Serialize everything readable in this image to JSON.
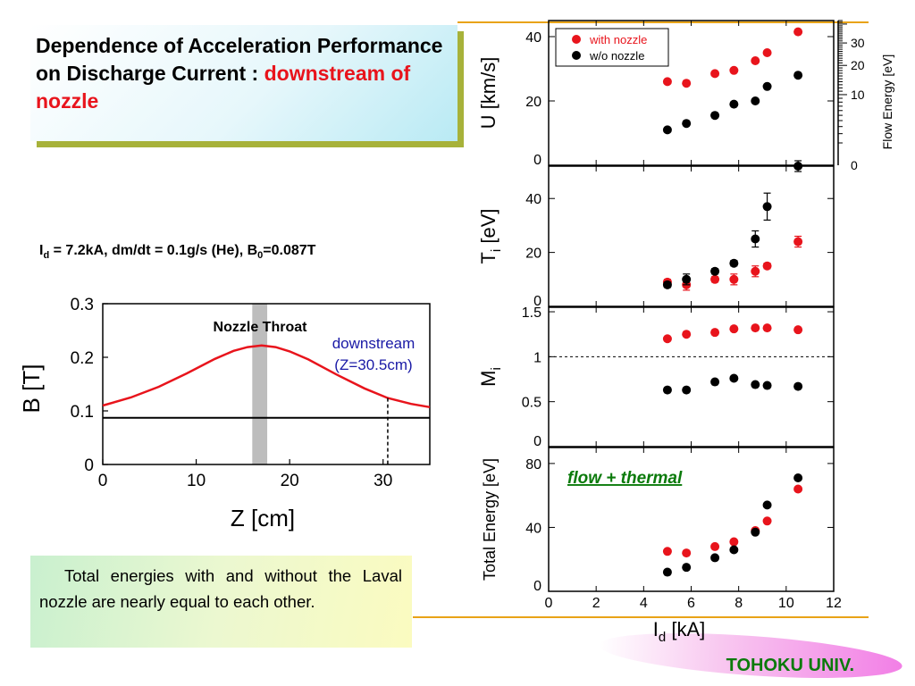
{
  "title": {
    "main": "Dependence of Acceleration Performance on Discharge Current : ",
    "highlight": "downstream of nozzle"
  },
  "conditions": {
    "i_sym": "I",
    "i_sub": "d",
    "part1": " = 7.2kA, dm/dt = 0.1g/s (He), B",
    "b_sub": "0",
    "part2": "=0.087T"
  },
  "note": "Total energies with and without the Laval nozzle are nearly equal to each other.",
  "footer": "TOHOKU UNIV.",
  "colors": {
    "nozzle": "#e8141c",
    "no_nozzle": "#000000",
    "accent_line": "#e8a317",
    "field": "#e8141c",
    "throat": "#bdbdbd",
    "downstream_text": "#1a1aa6",
    "annotation_green": "#0b7a0b"
  },
  "chart_data": [
    {
      "type": "line",
      "ylabel": "B [T]",
      "xlabel": "Z [cm]",
      "xlim": [
        0,
        35
      ],
      "ylim": [
        0,
        0.3
      ],
      "xticks": [
        0,
        10,
        20,
        30
      ],
      "yticks": [
        0,
        0.1,
        0.2,
        0.3
      ],
      "series": [
        {
          "x": [
            0,
            3,
            6,
            9,
            12,
            14,
            15.5,
            17,
            18.5,
            20,
            22,
            25,
            28,
            30.5,
            33,
            35
          ],
          "values": [
            0.11,
            0.125,
            0.145,
            0.17,
            0.197,
            0.212,
            0.219,
            0.222,
            0.219,
            0.211,
            0.196,
            0.168,
            0.142,
            0.124,
            0.113,
            0.107
          ]
        },
        {
          "x": [
            0,
            35
          ],
          "values": [
            0.087,
            0.087
          ]
        }
      ],
      "annotations": {
        "throat": {
          "label": "Nozzle Throat",
          "x": [
            16,
            17.6
          ]
        },
        "downstream": {
          "line1": "downstream",
          "line2": "(Z=30.5cm)",
          "x": 30.5
        }
      }
    },
    {
      "type": "scatter",
      "xlabel": "I",
      "xlabel_sub": "d",
      "xlabel_unit": " [kA]",
      "xlim": [
        0,
        12
      ],
      "xticks": [
        0,
        2,
        4,
        6,
        8,
        10,
        12
      ],
      "legend": {
        "position": "top-left",
        "entries": [
          "with nozzle",
          "w/o nozzle"
        ]
      },
      "panels": [
        {
          "ylabel": "U [km/s]",
          "ylim": [
            0,
            45
          ],
          "yticks": [
            0,
            20,
            40
          ],
          "secondary_axis": {
            "label": "Flow Energy [eV]",
            "ticks": [
              0,
              10,
              20,
              30
            ]
          },
          "series": [
            {
              "name": "with nozzle",
              "x": [
                5.0,
                5.8,
                7.0,
                7.8,
                8.7,
                9.2,
                10.5
              ],
              "values": [
                26,
                25.5,
                28.5,
                29.5,
                32.5,
                35,
                41.5
              ]
            },
            {
              "name": "w/o nozzle",
              "x": [
                5.0,
                5.8,
                7.0,
                7.8,
                8.7,
                9.2,
                10.5
              ],
              "values": [
                11,
                13,
                15.5,
                19,
                20,
                24.5,
                28
              ]
            }
          ]
        },
        {
          "ylabel": "T",
          "ylabel_sub": "i",
          "ylabel_unit": " [eV]",
          "ylim": [
            0,
            52
          ],
          "yticks": [
            0,
            20,
            40
          ],
          "series": [
            {
              "name": "with nozzle",
              "x": [
                5.0,
                5.8,
                7.0,
                7.8,
                8.7,
                9.2,
                10.5
              ],
              "values": [
                9,
                8,
                10,
                10,
                13,
                15,
                24
              ],
              "errors": [
                1,
                2,
                1,
                2,
                2,
                1,
                2
              ]
            },
            {
              "name": "w/o nozzle",
              "x": [
                5.0,
                5.8,
                7.0,
                7.8,
                8.7,
                9.2,
                10.5
              ],
              "values": [
                8,
                10,
                13,
                16,
                25,
                37,
                52
              ],
              "errors": [
                1,
                2,
                1,
                1,
                3,
                5,
                2
              ]
            }
          ]
        },
        {
          "ylabel": "M",
          "ylabel_sub": "i",
          "ylim": [
            0,
            1.55
          ],
          "yticks": [
            0,
            0.5,
            1,
            1.5
          ],
          "reference_line": 1,
          "series": [
            {
              "name": "with nozzle",
              "x": [
                5.0,
                5.8,
                7.0,
                7.8,
                8.7,
                9.2,
                10.5
              ],
              "values": [
                1.2,
                1.25,
                1.27,
                1.31,
                1.32,
                1.32,
                1.3
              ]
            },
            {
              "name": "w/o nozzle",
              "x": [
                5.0,
                5.8,
                7.0,
                7.8,
                8.7,
                9.2,
                10.5
              ],
              "values": [
                0.63,
                0.63,
                0.72,
                0.76,
                0.69,
                0.68,
                0.67
              ]
            }
          ]
        },
        {
          "ylabel": "Total Energy [eV]",
          "ylim": [
            0,
            90
          ],
          "yticks": [
            0,
            40,
            80
          ],
          "annotation": "flow + thermal",
          "series": [
            {
              "name": "with nozzle",
              "x": [
                5.0,
                5.8,
                7.0,
                7.8,
                8.7,
                9.2,
                10.5
              ],
              "values": [
                25,
                24,
                28,
                31,
                38,
                44,
                64
              ]
            },
            {
              "name": "w/o nozzle",
              "x": [
                5.0,
                5.8,
                7.0,
                7.8,
                8.7,
                9.2,
                10.5
              ],
              "values": [
                12,
                15,
                21,
                26,
                37,
                54,
                71
              ]
            }
          ]
        }
      ]
    }
  ]
}
